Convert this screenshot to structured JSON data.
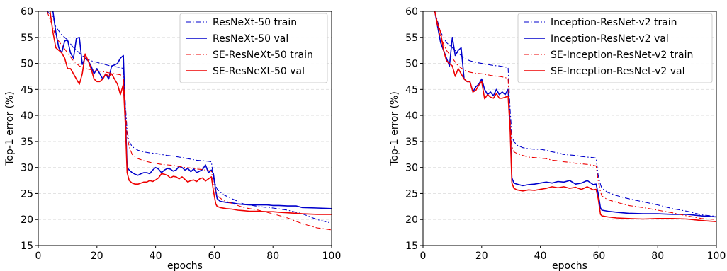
{
  "chart_data": [
    {
      "type": "line",
      "xlabel": "epochs",
      "ylabel": "Top-1 error (%)",
      "xlim": [
        0,
        100
      ],
      "ylim": [
        15,
        60
      ],
      "xticks": [
        0,
        20,
        40,
        60,
        80,
        100
      ],
      "yticks": [
        15,
        20,
        25,
        30,
        35,
        40,
        45,
        50,
        55,
        60
      ],
      "grid": "horizontal dashed",
      "legend_position": "top-right",
      "series": [
        {
          "name": "ResNeXt-50 train",
          "color": "#0000cc",
          "style": "dashdot",
          "x": [
            3,
            5,
            6,
            8,
            10,
            12,
            14,
            16,
            18,
            20,
            22,
            24,
            26,
            28,
            29,
            29.7,
            30.3,
            31,
            32,
            34,
            36,
            38,
            40,
            42,
            44,
            46,
            48,
            50,
            52,
            54,
            56,
            58,
            59,
            59.7,
            60.5,
            61,
            63,
            66,
            70,
            75,
            80,
            85,
            90,
            95,
            100
          ],
          "y": [
            60,
            59,
            57,
            55.5,
            54.5,
            53,
            52,
            51,
            50.5,
            50.2,
            49.9,
            49.6,
            49.4,
            49.2,
            49,
            42,
            37,
            35,
            34,
            33.3,
            33,
            32.8,
            32.7,
            32.5,
            32.3,
            32.2,
            32,
            31.8,
            31.6,
            31.4,
            31.3,
            31.2,
            31.1,
            28,
            26.5,
            25.8,
            24.8,
            24,
            23,
            22.5,
            22.2,
            21.8,
            21.1,
            20,
            19.3
          ]
        },
        {
          "name": "ResNeXt-50 val",
          "color": "#0000cc",
          "style": "solid",
          "x": [
            5,
            6,
            7,
            8,
            9,
            10,
            11,
            12,
            13,
            14,
            15,
            16,
            17,
            18,
            19,
            20,
            21,
            22,
            23,
            24,
            25,
            26,
            27,
            28,
            29,
            29.7,
            30.3,
            31,
            32,
            33,
            34,
            35,
            36,
            37,
            38,
            39,
            40,
            41,
            42,
            43,
            44,
            45,
            46,
            47,
            48,
            49,
            50,
            51,
            52,
            53,
            54,
            55,
            56,
            57,
            58,
            59,
            59.7,
            60.5,
            61,
            62,
            64,
            66,
            68,
            70,
            72,
            75,
            78,
            80,
            82,
            85,
            88,
            90,
            95,
            100
          ],
          "y": [
            60,
            56,
            53,
            52,
            54.3,
            54.5,
            52,
            51,
            54.8,
            55,
            49.8,
            51,
            50.5,
            49.5,
            48,
            49,
            48,
            47,
            48,
            47,
            49.5,
            49.7,
            50,
            51,
            51.5,
            40,
            30,
            29.5,
            29,
            28.7,
            28.5,
            28.8,
            29,
            29,
            28.8,
            29.5,
            30,
            29.7,
            29,
            29.5,
            29.8,
            29.7,
            29.3,
            29.5,
            30.2,
            30,
            29.5,
            29.8,
            29.2,
            29.7,
            29,
            29.3,
            29.6,
            30.5,
            29,
            29.5,
            28.8,
            25.5,
            24,
            23.5,
            23.3,
            23.2,
            23,
            22.9,
            22.8,
            22.8,
            22.8,
            22.7,
            22.7,
            22.6,
            22.6,
            22.3,
            22.2,
            22.1
          ]
        },
        {
          "name": "SE-ResNeXt-50 train",
          "color": "#ee0000",
          "style": "dashdot",
          "x": [
            3,
            5,
            6,
            8,
            10,
            12,
            14,
            16,
            18,
            20,
            22,
            24,
            26,
            28,
            29,
            29.7,
            30.3,
            31,
            32,
            34,
            36,
            38,
            40,
            42,
            44,
            46,
            48,
            50,
            52,
            54,
            56,
            58,
            59,
            59.7,
            60.5,
            61,
            63,
            66,
            70,
            75,
            80,
            85,
            90,
            95,
            100
          ],
          "y": [
            60,
            57,
            55,
            53.5,
            52,
            50.5,
            49.5,
            49,
            48.8,
            48.6,
            48.4,
            48.2,
            48,
            47.8,
            47.5,
            41,
            36,
            34,
            32.5,
            31.7,
            31.3,
            31,
            30.8,
            30.6,
            30.5,
            30.4,
            30.2,
            30,
            29.9,
            29.7,
            29.6,
            29.4,
            29.3,
            27,
            25.2,
            24.6,
            23.7,
            23.1,
            22.3,
            21.8,
            21.1,
            20.3,
            19.2,
            18.4,
            18
          ]
        },
        {
          "name": "SE-ResNeXt-50 val",
          "color": "#ee0000",
          "style": "solid",
          "x": [
            4,
            5,
            6,
            7,
            8,
            9,
            10,
            11,
            12,
            13,
            14,
            15,
            16,
            17,
            18,
            19,
            20,
            21,
            22,
            23,
            24,
            25,
            26,
            27,
            28,
            29,
            29.7,
            30.3,
            31,
            32,
            33,
            34,
            35,
            36,
            37,
            38,
            39,
            40,
            41,
            42,
            43,
            44,
            45,
            46,
            47,
            48,
            49,
            50,
            51,
            52,
            53,
            54,
            55,
            56,
            57,
            58,
            59,
            59.7,
            60.5,
            61,
            62,
            64,
            66,
            68,
            70,
            72,
            75,
            78,
            80,
            82,
            85,
            88,
            90,
            95,
            100
          ],
          "y": [
            60,
            56,
            53,
            52.5,
            52,
            51,
            49,
            49,
            48,
            47,
            46,
            48,
            51.8,
            50.5,
            49,
            47,
            46.5,
            46.5,
            47,
            48,
            47.5,
            48,
            47,
            46,
            44,
            46,
            38,
            29,
            27.5,
            27,
            26.8,
            26.8,
            27,
            27.2,
            27.2,
            27.5,
            27.3,
            27.6,
            28,
            28.8,
            28.7,
            28.5,
            28,
            28.3,
            28.2,
            27.8,
            28.2,
            27.7,
            27.2,
            27.5,
            27.6,
            27.3,
            27.8,
            28,
            27.4,
            27.8,
            28.2,
            25.5,
            23,
            22.5,
            22.3,
            22.1,
            22,
            21.8,
            21.7,
            21.6,
            21.6,
            21.5,
            21.5,
            21.4,
            21.3,
            21.2,
            21.1,
            21,
            21
          ]
        }
      ]
    },
    {
      "type": "line",
      "xlabel": "epochs",
      "ylabel": "Top-1 error (%)",
      "xlim": [
        0,
        100
      ],
      "ylim": [
        15,
        60
      ],
      "xticks": [
        0,
        20,
        40,
        60,
        80,
        100
      ],
      "yticks": [
        15,
        20,
        25,
        30,
        35,
        40,
        45,
        50,
        55,
        60
      ],
      "grid": "horizontal dashed",
      "legend_position": "top-right",
      "series": [
        {
          "name": "Inception-ResNet-v2 train",
          "color": "#0000cc",
          "style": "dashdot",
          "x": [
            4,
            5,
            6,
            8,
            10,
            12,
            14,
            16,
            18,
            20,
            22,
            24,
            26,
            28,
            29,
            29.7,
            30.3,
            31,
            32,
            34,
            36,
            38,
            40,
            42,
            44,
            46,
            48,
            50,
            52,
            54,
            56,
            58,
            59,
            59.7,
            60.5,
            61,
            63,
            66,
            70,
            75,
            80,
            85,
            90,
            95,
            100
          ],
          "y": [
            60,
            58,
            56,
            54,
            53,
            52,
            51,
            50.5,
            50.2,
            50,
            49.8,
            49.6,
            49.5,
            49.3,
            49.2,
            41,
            36,
            35,
            34.3,
            33.8,
            33.6,
            33.5,
            33.5,
            33.3,
            33,
            32.8,
            32.5,
            32.4,
            32.3,
            32.1,
            32,
            31.9,
            31.8,
            28.5,
            26.7,
            26,
            25.2,
            24.6,
            24,
            23.4,
            22.8,
            22.1,
            21.6,
            20.9,
            20.6
          ]
        },
        {
          "name": "Inception-ResNet-v2 val",
          "color": "#0000cc",
          "style": "solid",
          "x": [
            4,
            5,
            6,
            7,
            8,
            9,
            10,
            11,
            12,
            13,
            14,
            15,
            16,
            17,
            18,
            19,
            20,
            21,
            22,
            23,
            24,
            25,
            26,
            27,
            28,
            29,
            29.7,
            30.3,
            31,
            32,
            34,
            36,
            38,
            40,
            42,
            44,
            46,
            48,
            50,
            52,
            54,
            56,
            58,
            59,
            59.7,
            60.5,
            61,
            63,
            66,
            70,
            75,
            80,
            85,
            90,
            95,
            100
          ],
          "y": [
            60,
            57,
            54,
            52.5,
            51,
            49.5,
            55,
            51.5,
            52.5,
            53,
            47,
            46.5,
            46.5,
            44.5,
            45.5,
            46,
            47,
            45,
            44,
            44.5,
            43.8,
            45,
            44,
            44.5,
            44,
            45,
            38,
            28,
            27,
            26.8,
            26.5,
            26.7,
            26.8,
            27,
            27.2,
            27,
            27.3,
            27.2,
            27.5,
            26.8,
            27,
            27.5,
            26.7,
            26.8,
            25,
            22.2,
            21.8,
            21.6,
            21.4,
            21.2,
            21.1,
            21.1,
            21,
            21,
            20.7,
            20.5
          ]
        },
        {
          "name": "SE-Inception-ResNet-v2 train",
          "color": "#ee0000",
          "style": "dashdot",
          "x": [
            4,
            5,
            6,
            8,
            10,
            12,
            14,
            16,
            18,
            20,
            22,
            24,
            26,
            28,
            29,
            29.7,
            30.3,
            31,
            32,
            34,
            36,
            38,
            40,
            42,
            44,
            46,
            48,
            50,
            52,
            54,
            56,
            58,
            59,
            59.7,
            60.5,
            61,
            63,
            66,
            70,
            75,
            80,
            85,
            90,
            95,
            100
          ],
          "y": [
            60,
            57,
            55,
            52.5,
            51,
            49.5,
            48.7,
            48.3,
            48.1,
            48,
            47.8,
            47.6,
            47.5,
            47.3,
            47,
            39,
            34,
            33,
            32.7,
            32.3,
            32,
            31.9,
            31.8,
            31.7,
            31.4,
            31.3,
            31.1,
            31,
            30.8,
            30.7,
            30.6,
            30.4,
            30.3,
            27.5,
            25.3,
            24.5,
            23.8,
            23.3,
            22.7,
            22.3,
            21.8,
            21.3,
            20.7,
            20.2,
            20
          ]
        },
        {
          "name": "SE-Inception-ResNet-v2 val",
          "color": "#ee0000",
          "style": "solid",
          "x": [
            4,
            5,
            6,
            7,
            8,
            9,
            10,
            11,
            12,
            13,
            14,
            15,
            16,
            17,
            18,
            19,
            20,
            21,
            22,
            23,
            24,
            25,
            26,
            27,
            28,
            29,
            29.7,
            30.3,
            31,
            32,
            34,
            36,
            38,
            40,
            42,
            44,
            46,
            48,
            50,
            52,
            54,
            56,
            58,
            59,
            59.7,
            60.5,
            61,
            63,
            66,
            70,
            75,
            80,
            85,
            90,
            95,
            100
          ],
          "y": [
            60,
            57.5,
            56,
            52.5,
            50.5,
            50,
            49.5,
            47.5,
            49,
            48,
            47,
            46.5,
            46.5,
            44.5,
            44.8,
            45.8,
            46.5,
            43.2,
            44,
            43.5,
            43.3,
            44.2,
            43.3,
            43.3,
            43.5,
            43.7,
            37,
            27,
            26,
            25.7,
            25.5,
            25.7,
            25.6,
            25.8,
            26,
            26.3,
            26.1,
            26.3,
            26,
            26.2,
            25.8,
            26.3,
            25.7,
            25.8,
            24,
            21,
            20.7,
            20.5,
            20.3,
            20.2,
            20.1,
            20.2,
            20.2,
            20.1,
            19.8,
            19.6
          ]
        }
      ]
    }
  ]
}
